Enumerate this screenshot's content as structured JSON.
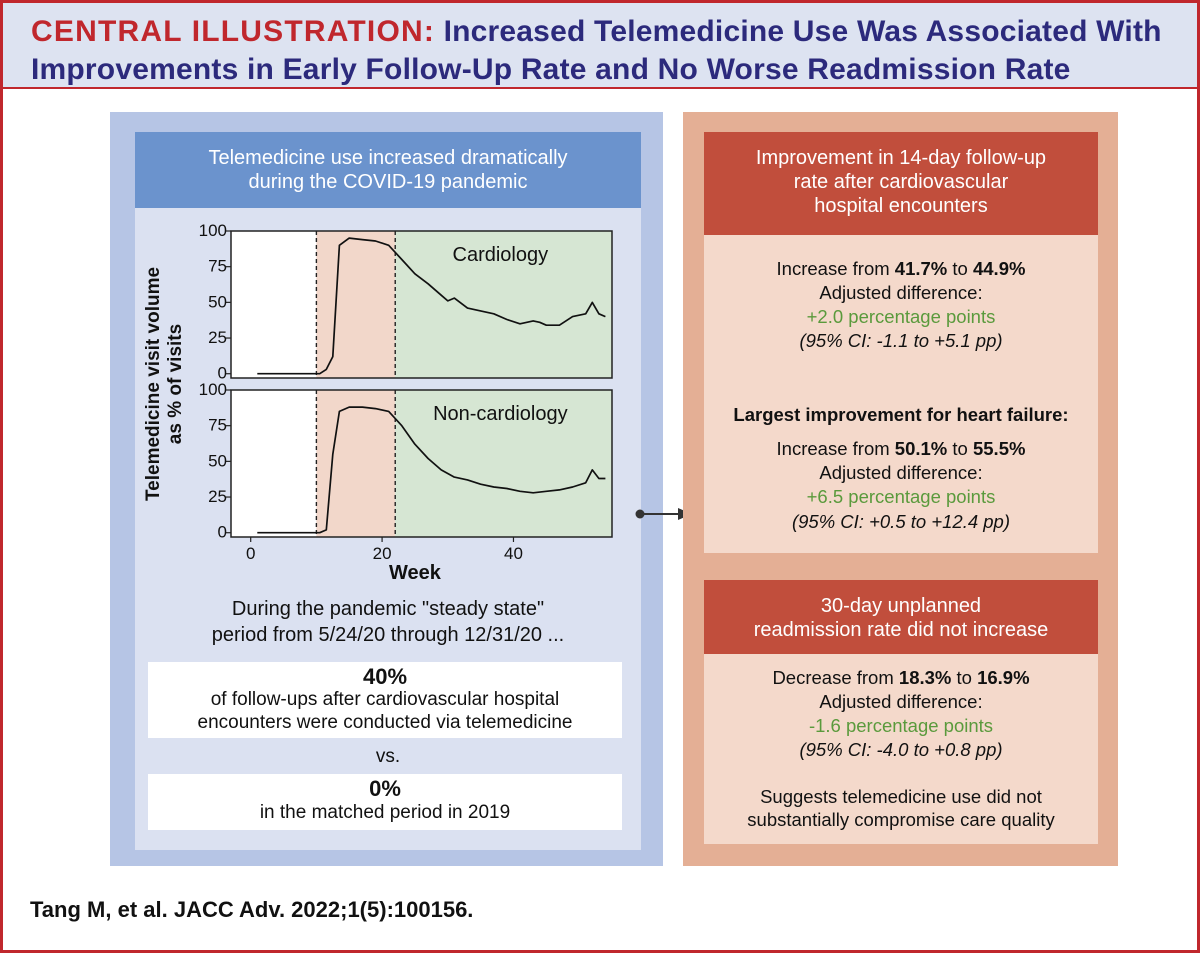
{
  "header": {
    "label": "CENTRAL ILLUSTRATION:",
    "line1_rest": " Increased Telemedicine Use Was Associated With",
    "line2": "Improvements in Early Follow-Up Rate and No Worse Readmission Rate"
  },
  "left": {
    "banner_line1": "Telemedicine use increased dramatically",
    "banner_line2": "during the COVID-19 pandemic",
    "steady_line1": "During the pandemic \"steady state\"",
    "steady_line2": "period from 5/24/20 through 12/31/20 ...",
    "box40_value": "40%",
    "box40_line1": "of follow-ups after cardiovascular hospital",
    "box40_line2": "encounters were conducted via telemedicine",
    "vs": "vs.",
    "box0_value": "0%",
    "box0_line1": "in the matched period in 2019"
  },
  "chart_data": {
    "type": "line",
    "ylabel_line1": "Telemedicine visit volume",
    "ylabel_line2": "as % of visits",
    "xlabel": "Week",
    "xlim": [
      -3,
      55
    ],
    "ylim": [
      -3,
      100
    ],
    "x_ticks": [
      0,
      20,
      40
    ],
    "y_ticks": [
      0,
      25,
      50,
      75,
      100
    ],
    "periods": [
      {
        "name": "pre-pandemic",
        "start": -3,
        "end": 10,
        "color": "#ffffff"
      },
      {
        "name": "surge",
        "start": 10,
        "end": 22,
        "color": "#f2d7ca"
      },
      {
        "name": "steady-state",
        "start": 22,
        "end": 55,
        "color": "#d6e6d3"
      }
    ],
    "panels": [
      {
        "name": "Cardiology",
        "x": [
          1,
          10.5,
          11.5,
          12.5,
          13.5,
          15,
          17,
          19,
          21,
          23,
          25,
          27,
          29,
          30,
          31,
          33,
          35,
          37,
          39,
          41,
          43,
          44,
          45,
          47,
          49,
          51,
          52,
          53,
          54
        ],
        "y": [
          0,
          0,
          3,
          12,
          90,
          95,
          94,
          93,
          90,
          80,
          70,
          63,
          55,
          51,
          53,
          46,
          44,
          42,
          38,
          35,
          37,
          36,
          34,
          34,
          40,
          42,
          50,
          42,
          40
        ]
      },
      {
        "name": "Non-cardiology",
        "x": [
          1,
          10.5,
          11.5,
          12.5,
          13.5,
          15,
          17,
          19,
          21,
          23,
          25,
          27,
          29,
          31,
          33,
          35,
          37,
          39,
          41,
          43,
          45,
          47,
          49,
          51,
          52,
          53,
          54
        ],
        "y": [
          0,
          0,
          2,
          55,
          85,
          88,
          88,
          87,
          85,
          75,
          62,
          52,
          44,
          39,
          37,
          34,
          32,
          31,
          29,
          28,
          29,
          30,
          32,
          35,
          44,
          38,
          38
        ]
      }
    ]
  },
  "right": {
    "banner1_line1": "Improvement in 14-day follow-up",
    "banner1_line2": "rate after cardiovascular",
    "banner1_line3": "hospital encounters",
    "s1_prefix": "Increase from ",
    "s1_from": "41.7%",
    "s1_to_word": " to ",
    "s1_to": "44.9%",
    "s1_adj": "Adjusted difference:",
    "s1_diff": "+2.0 percentage points",
    "s1_ci": "(95% CI: -1.1 to +5.1 pp)",
    "hf_heading": "Largest improvement for heart failure:",
    "s2_prefix": "Increase from ",
    "s2_from": "50.1%",
    "s2_to_word": " to ",
    "s2_to": "55.5%",
    "s2_adj": "Adjusted difference:",
    "s2_diff": "+6.5 percentage points",
    "s2_ci": "(95% CI: +0.5 to +12.4 pp)",
    "banner2_line1": "30-day unplanned",
    "banner2_line2": "readmission rate did not increase",
    "s3_prefix": "Decrease from ",
    "s3_from": "18.3%",
    "s3_to_word": " to ",
    "s3_to": "16.9%",
    "s3_adj": "Adjusted difference:",
    "s3_diff": "-1.6 percentage points",
    "s3_ci": "(95% CI: -4.0 to +0.8 pp)",
    "suggest_line1": "Suggests telemedicine use did not",
    "suggest_line2": "substantially compromise care quality"
  },
  "citation": "Tang M, et al. JACC Adv. 2022;1(5):100156.",
  "colors": {
    "accent_red": "#c0272d",
    "title_navy": "#2c2a7c",
    "left_banner": "#6b93cd",
    "right_banner": "#c14e3c",
    "green_text": "#5a9a3c"
  }
}
